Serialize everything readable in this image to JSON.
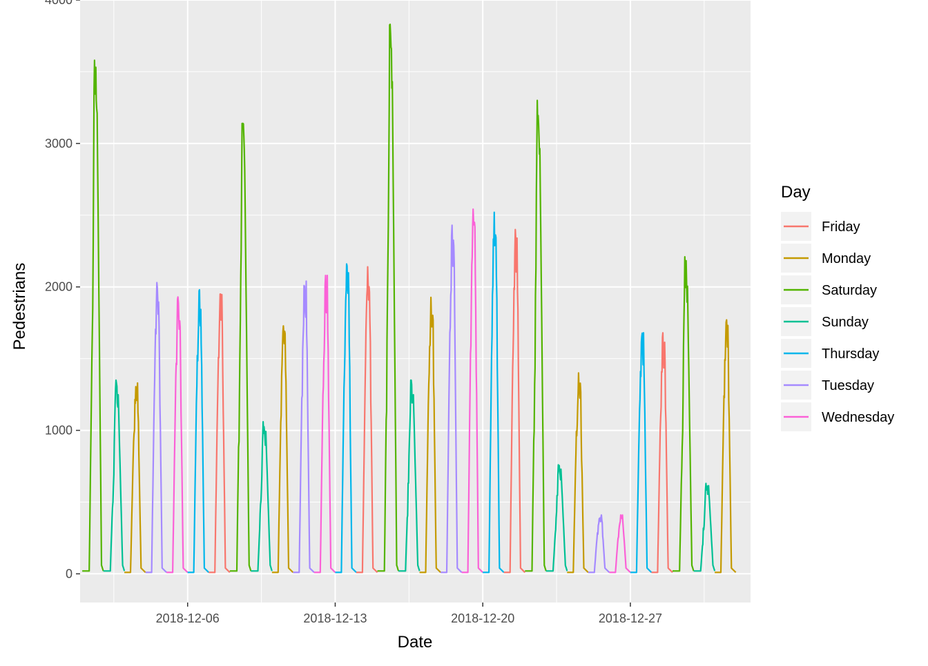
{
  "chart_data": {
    "type": "line",
    "title": "",
    "xlabel": "Date",
    "ylabel": "Pedestrians",
    "x_unit": "day of December 2018",
    "xlim": [
      0.9,
      32.7
    ],
    "ylim": [
      -200,
      4000
    ],
    "x_ticks": [
      {
        "day": 6,
        "label": "2018-12-06"
      },
      {
        "day": 13,
        "label": "2018-12-13"
      },
      {
        "day": 20,
        "label": "2018-12-20"
      },
      {
        "day": 27,
        "label": "2018-12-27"
      }
    ],
    "y_ticks": [
      0,
      1000,
      2000,
      3000,
      4000
    ],
    "grid": true,
    "legend": {
      "title": "Day",
      "position": "right"
    },
    "series": [
      {
        "name": "Friday",
        "color": "#F8766D",
        "peaks": [
          [
            7,
            1950
          ],
          [
            14,
            2140
          ],
          [
            21,
            2400
          ],
          [
            28,
            1680
          ]
        ]
      },
      {
        "name": "Monday",
        "color": "#C49A00",
        "peaks": [
          [
            3,
            1330
          ],
          [
            10,
            1760
          ],
          [
            17,
            1960
          ],
          [
            24,
            1400
          ],
          [
            31,
            1770
          ]
        ]
      },
      {
        "name": "Saturday",
        "color": "#53B400",
        "peaks": [
          [
            1,
            3580
          ],
          [
            8,
            3140
          ],
          [
            15,
            3830
          ],
          [
            22,
            3300
          ],
          [
            29,
            2210
          ]
        ]
      },
      {
        "name": "Sunday",
        "color": "#00C094",
        "peaks": [
          [
            2,
            1350
          ],
          [
            9,
            1060
          ],
          [
            16,
            1350
          ],
          [
            23,
            760
          ],
          [
            30,
            630
          ]
        ]
      },
      {
        "name": "Thursday",
        "color": "#00B6EB",
        "peaks": [
          [
            6,
            1980
          ],
          [
            13,
            2160
          ],
          [
            20,
            2520
          ],
          [
            27,
            1680
          ]
        ]
      },
      {
        "name": "Tuesday",
        "color": "#A58AFF",
        "peaks": [
          [
            4,
            2030
          ],
          [
            11,
            2040
          ],
          [
            18,
            2430
          ],
          [
            25,
            410
          ]
        ]
      },
      {
        "name": "Wednesday",
        "color": "#FB61D7",
        "peaks": [
          [
            5,
            1930
          ],
          [
            12,
            2080
          ],
          [
            19,
            2560
          ],
          [
            26,
            410
          ]
        ]
      }
    ]
  }
}
